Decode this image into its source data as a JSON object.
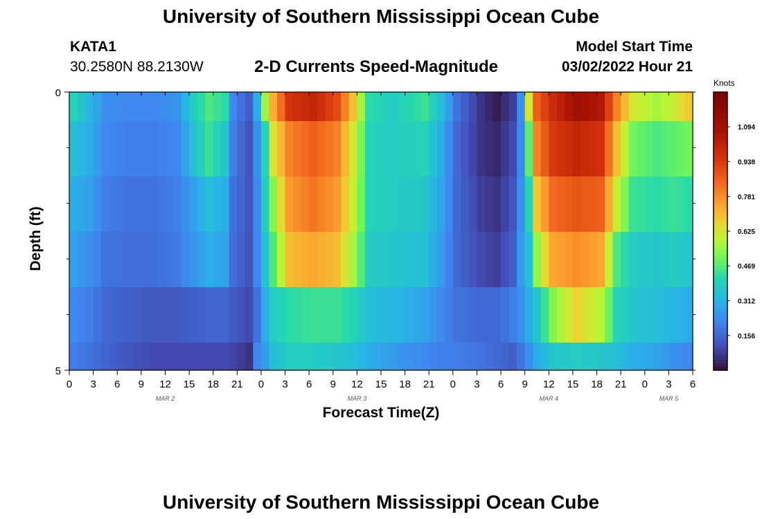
{
  "header": {
    "title": "University of Southern Mississippi Ocean Cube",
    "station": "KATA1",
    "coords": "30.2580N  88.2130W",
    "subtitle": "2-D Currents Speed-Magnitude",
    "model_start_label": "Model Start Time",
    "model_start_value": "03/02/2022 Hour 21"
  },
  "footer": {
    "title": "University of Southern Mississippi Ocean Cube"
  },
  "chart_data": {
    "type": "heatmap",
    "title": "2-D Currents Speed-Magnitude",
    "xlabel": "Forecast Time(Z)",
    "ylabel": "Depth (ft)",
    "y_ticks": [
      "0",
      "5"
    ],
    "ylim": [
      0,
      5
    ],
    "x_tick_labels": [
      "0",
      "3",
      "6",
      "9",
      "12",
      "15",
      "18",
      "21",
      "0",
      "3",
      "6",
      "9",
      "12",
      "15",
      "18",
      "21",
      "0",
      "3",
      "6",
      "9",
      "12",
      "15",
      "18",
      "21",
      "0",
      "3",
      "6"
    ],
    "date_labels": [
      {
        "label": "MAR 2",
        "tick_index": 4
      },
      {
        "label": "MAR 3",
        "tick_index": 12
      },
      {
        "label": "MAR 4",
        "tick_index": 20
      },
      {
        "label": "MAR 5",
        "tick_index": 25
      }
    ],
    "colorbar": {
      "unit": "Knots",
      "min": 0.0,
      "max": 1.25,
      "ticks": [
        "1.094",
        "0.938",
        "0.781",
        "0.625",
        "0.469",
        "0.312",
        "0.156"
      ]
    },
    "depth_layers": 6,
    "time_steps": 78,
    "keyframes": [
      {
        "t": 0,
        "v": [
          0.4,
          0.34,
          0.3,
          0.27,
          0.22,
          0.2
        ]
      },
      {
        "t": 2,
        "v": [
          0.32,
          0.3,
          0.27,
          0.24,
          0.2,
          0.18
        ]
      },
      {
        "t": 4,
        "v": [
          0.24,
          0.22,
          0.2,
          0.18,
          0.16,
          0.15
        ]
      },
      {
        "t": 7,
        "v": [
          0.22,
          0.2,
          0.18,
          0.17,
          0.14,
          0.12
        ]
      },
      {
        "t": 10,
        "v": [
          0.22,
          0.2,
          0.18,
          0.17,
          0.13,
          0.1
        ]
      },
      {
        "t": 13,
        "v": [
          0.25,
          0.22,
          0.2,
          0.19,
          0.13,
          0.1
        ]
      },
      {
        "t": 15,
        "v": [
          0.38,
          0.34,
          0.27,
          0.25,
          0.14,
          0.1
        ]
      },
      {
        "t": 17,
        "v": [
          0.46,
          0.44,
          0.34,
          0.3,
          0.15,
          0.1
        ]
      },
      {
        "t": 19,
        "v": [
          0.42,
          0.36,
          0.3,
          0.28,
          0.15,
          0.1
        ]
      },
      {
        "t": 20,
        "v": [
          0.22,
          0.2,
          0.18,
          0.17,
          0.13,
          0.09
        ]
      },
      {
        "t": 22,
        "v": [
          0.14,
          0.12,
          0.12,
          0.12,
          0.1,
          0.06
        ]
      },
      {
        "t": 23,
        "v": [
          0.3,
          0.24,
          0.22,
          0.22,
          0.18,
          0.22
        ]
      },
      {
        "t": 24,
        "v": [
          0.55,
          0.4,
          0.38,
          0.34,
          0.3,
          0.26
        ]
      },
      {
        "t": 25,
        "v": [
          0.72,
          0.62,
          0.52,
          0.46,
          0.38,
          0.34
        ]
      },
      {
        "t": 27,
        "v": [
          0.95,
          0.8,
          0.76,
          0.7,
          0.42,
          0.38
        ]
      },
      {
        "t": 30,
        "v": [
          1.0,
          0.86,
          0.82,
          0.74,
          0.44,
          0.38
        ]
      },
      {
        "t": 33,
        "v": [
          0.9,
          0.8,
          0.76,
          0.7,
          0.44,
          0.36
        ]
      },
      {
        "t": 35,
        "v": [
          0.7,
          0.62,
          0.6,
          0.56,
          0.4,
          0.34
        ]
      },
      {
        "t": 37,
        "v": [
          0.42,
          0.4,
          0.4,
          0.38,
          0.34,
          0.3
        ]
      },
      {
        "t": 40,
        "v": [
          0.38,
          0.38,
          0.38,
          0.36,
          0.32,
          0.26
        ]
      },
      {
        "t": 44,
        "v": [
          0.44,
          0.4,
          0.36,
          0.34,
          0.28,
          0.22
        ]
      },
      {
        "t": 46,
        "v": [
          0.34,
          0.3,
          0.28,
          0.26,
          0.22,
          0.2
        ]
      },
      {
        "t": 48,
        "v": [
          0.18,
          0.16,
          0.16,
          0.16,
          0.18,
          0.2
        ]
      },
      {
        "t": 51,
        "v": [
          0.06,
          0.06,
          0.08,
          0.1,
          0.16,
          0.18
        ]
      },
      {
        "t": 53,
        "v": [
          0.02,
          0.04,
          0.06,
          0.08,
          0.16,
          0.16
        ]
      },
      {
        "t": 55,
        "v": [
          0.08,
          0.1,
          0.12,
          0.14,
          0.2,
          0.14
        ]
      },
      {
        "t": 56,
        "v": [
          0.24,
          0.22,
          0.24,
          0.26,
          0.24,
          0.18
        ]
      },
      {
        "t": 57,
        "v": [
          0.62,
          0.48,
          0.4,
          0.34,
          0.3,
          0.24
        ]
      },
      {
        "t": 58,
        "v": [
          0.86,
          0.8,
          0.68,
          0.54,
          0.36,
          0.3
        ]
      },
      {
        "t": 60,
        "v": [
          0.98,
          0.94,
          0.84,
          0.74,
          0.52,
          0.36
        ]
      },
      {
        "t": 63,
        "v": [
          1.1,
          1.0,
          0.88,
          0.78,
          0.66,
          0.38
        ]
      },
      {
        "t": 66,
        "v": [
          1.05,
          0.96,
          0.86,
          0.74,
          0.58,
          0.36
        ]
      },
      {
        "t": 68,
        "v": [
          0.8,
          0.7,
          0.6,
          0.46,
          0.4,
          0.34
        ]
      },
      {
        "t": 70,
        "v": [
          0.62,
          0.5,
          0.44,
          0.38,
          0.36,
          0.3
        ]
      },
      {
        "t": 73,
        "v": [
          0.56,
          0.46,
          0.42,
          0.36,
          0.34,
          0.28
        ]
      },
      {
        "t": 75,
        "v": [
          0.6,
          0.48,
          0.44,
          0.38,
          0.32,
          0.24
        ]
      },
      {
        "t": 77,
        "v": [
          0.68,
          0.5,
          0.42,
          0.36,
          0.3,
          0.22
        ]
      }
    ]
  }
}
